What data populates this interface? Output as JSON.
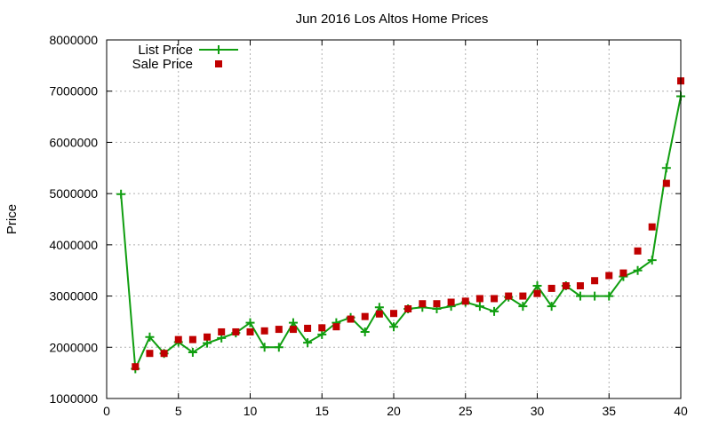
{
  "chart_data": {
    "type": "line",
    "title": "Jun 2016 Los Altos Home Prices",
    "xlabel": "",
    "ylabel": "Price",
    "xlim": [
      0,
      40
    ],
    "ylim": [
      1000000,
      8000000
    ],
    "x_ticks": [
      "0",
      "5",
      "10",
      "15",
      "20",
      "25",
      "30",
      "35",
      "40"
    ],
    "y_ticks": [
      "1000000",
      "2000000",
      "3000000",
      "4000000",
      "5000000",
      "6000000",
      "7000000",
      "8000000"
    ],
    "grid": true,
    "legend_position": "top-left",
    "series": [
      {
        "name": "List Price",
        "style": "line-with-plus-markers",
        "color": "#109e10",
        "x": [
          1,
          2,
          3,
          4,
          5,
          6,
          7,
          8,
          9,
          10,
          11,
          12,
          13,
          14,
          15,
          16,
          17,
          18,
          19,
          20,
          21,
          22,
          23,
          24,
          25,
          26,
          27,
          28,
          29,
          30,
          31,
          32,
          33,
          34,
          35,
          36,
          37,
          38,
          39,
          40
        ],
        "values": [
          4990000,
          1580000,
          2200000,
          1880000,
          2100000,
          1900000,
          2080000,
          2180000,
          2280000,
          2480000,
          2000000,
          2000000,
          2480000,
          2090000,
          2250000,
          2480000,
          2580000,
          2300000,
          2780000,
          2400000,
          2750000,
          2780000,
          2750000,
          2800000,
          2880000,
          2800000,
          2700000,
          2980000,
          2800000,
          3200000,
          2800000,
          3200000,
          3000000,
          3000000,
          3000000,
          3380000,
          3500000,
          3700000,
          5500000,
          6900000
        ]
      },
      {
        "name": "Sale Price",
        "style": "square-markers",
        "color": "#c00000",
        "x": [
          2,
          3,
          4,
          5,
          6,
          7,
          8,
          9,
          10,
          11,
          12,
          13,
          14,
          15,
          16,
          17,
          18,
          19,
          20,
          21,
          22,
          23,
          24,
          25,
          26,
          27,
          28,
          29,
          30,
          31,
          32,
          33,
          34,
          35,
          36,
          37,
          38,
          39,
          40
        ],
        "values": [
          1620000,
          1880000,
          1880000,
          2150000,
          2150000,
          2200000,
          2300000,
          2300000,
          2300000,
          2320000,
          2350000,
          2350000,
          2370000,
          2380000,
          2400000,
          2550000,
          2600000,
          2650000,
          2660000,
          2750000,
          2850000,
          2850000,
          2880000,
          2900000,
          2950000,
          2950000,
          3000000,
          3000000,
          3050000,
          3150000,
          3200000,
          3200000,
          3300000,
          3400000,
          3450000,
          3880000,
          4350000,
          5200000,
          7200000
        ]
      }
    ]
  }
}
